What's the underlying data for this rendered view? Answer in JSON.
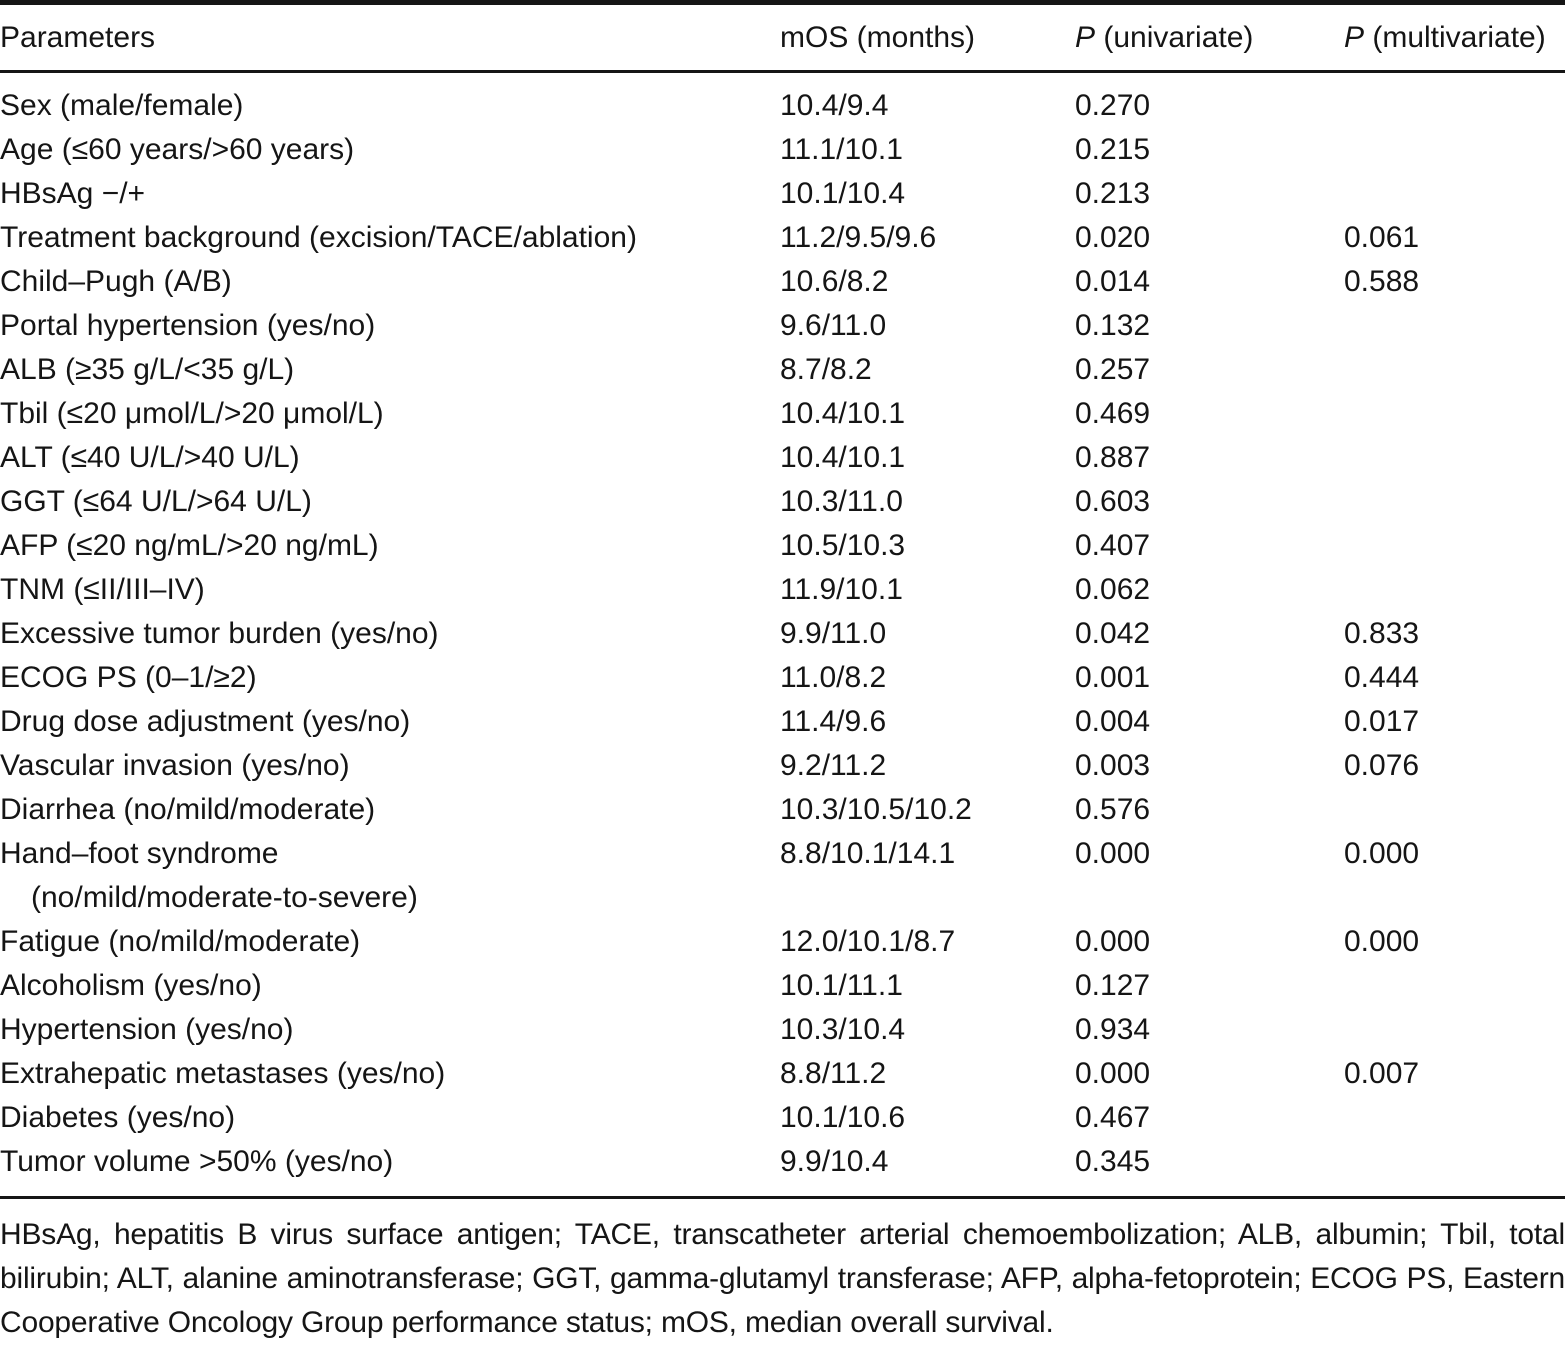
{
  "colors": {
    "background": "#ffffff",
    "text": "#151515",
    "rule": "#151515"
  },
  "table": {
    "columns": [
      {
        "label": "Parameters"
      },
      {
        "label": "mOS (months)"
      },
      {
        "italic": "P",
        "rest": " (univariate)"
      },
      {
        "italic": "P",
        "rest": " (multivariate)"
      }
    ],
    "rows": [
      {
        "parameter": "Sex (male/female)",
        "mos": "10.4/9.4",
        "p_univariate": "0.270",
        "p_multivariate": ""
      },
      {
        "parameter": "Age (≤60 years/>60 years)",
        "mos": "11.1/10.1",
        "p_univariate": "0.215",
        "p_multivariate": ""
      },
      {
        "parameter": "HBsAg −/+",
        "mos": "10.1/10.4",
        "p_univariate": "0.213",
        "p_multivariate": ""
      },
      {
        "parameter": "Treatment background (excision/TACE/ablation)",
        "mos": "11.2/9.5/9.6",
        "p_univariate": "0.020",
        "p_multivariate": "0.061"
      },
      {
        "parameter": "Child–Pugh (A/B)",
        "mos": "10.6/8.2",
        "p_univariate": "0.014",
        "p_multivariate": "0.588"
      },
      {
        "parameter": "Portal hypertension (yes/no)",
        "mos": "9.6/11.0",
        "p_univariate": "0.132",
        "p_multivariate": ""
      },
      {
        "parameter": "ALB (≥35 g/L/<35 g/L)",
        "mos": "8.7/8.2",
        "p_univariate": "0.257",
        "p_multivariate": ""
      },
      {
        "parameter": "Tbil (≤20 μmol/L/>20 μmol/L)",
        "mos": "10.4/10.1",
        "p_univariate": "0.469",
        "p_multivariate": ""
      },
      {
        "parameter": "ALT (≤40 U/L/>40 U/L)",
        "mos": "10.4/10.1",
        "p_univariate": "0.887",
        "p_multivariate": ""
      },
      {
        "parameter": "GGT (≤64 U/L/>64 U/L)",
        "mos": "10.3/11.0",
        "p_univariate": "0.603",
        "p_multivariate": ""
      },
      {
        "parameter": "AFP (≤20 ng/mL/>20 ng/mL)",
        "mos": "10.5/10.3",
        "p_univariate": "0.407",
        "p_multivariate": ""
      },
      {
        "parameter": "TNM (≤II/III–IV)",
        "mos": "11.9/10.1",
        "p_univariate": "0.062",
        "p_multivariate": ""
      },
      {
        "parameter": "Excessive tumor burden (yes/no)",
        "mos": "9.9/11.0",
        "p_univariate": "0.042",
        "p_multivariate": "0.833"
      },
      {
        "parameter": "ECOG PS (0–1/≥2)",
        "mos": "11.0/8.2",
        "p_univariate": "0.001",
        "p_multivariate": "0.444"
      },
      {
        "parameter": "Drug dose adjustment (yes/no)",
        "mos": "11.4/9.6",
        "p_univariate": "0.004",
        "p_multivariate": "0.017"
      },
      {
        "parameter": "Vascular invasion (yes/no)",
        "mos": "9.2/11.2",
        "p_univariate": "0.003",
        "p_multivariate": "0.076"
      },
      {
        "parameter": "Diarrhea (no/mild/moderate)",
        "mos": "10.3/10.5/10.2",
        "p_univariate": "0.576",
        "p_multivariate": ""
      },
      {
        "parameter": "Hand–foot syndrome",
        "parameter_line2": "(no/mild/moderate-to-severe)",
        "mos": "8.8/10.1/14.1",
        "p_univariate": "0.000",
        "p_multivariate": "0.000"
      },
      {
        "parameter": "Fatigue (no/mild/moderate)",
        "mos": "12.0/10.1/8.7",
        "p_univariate": "0.000",
        "p_multivariate": "0.000"
      },
      {
        "parameter": "Alcoholism (yes/no)",
        "mos": "10.1/11.1",
        "p_univariate": "0.127",
        "p_multivariate": ""
      },
      {
        "parameter": "Hypertension (yes/no)",
        "mos": "10.3/10.4",
        "p_univariate": "0.934",
        "p_multivariate": ""
      },
      {
        "parameter": "Extrahepatic metastases (yes/no)",
        "mos": "8.8/11.2",
        "p_univariate": "0.000",
        "p_multivariate": "0.007"
      },
      {
        "parameter": "Diabetes (yes/no)",
        "mos": "10.1/10.6",
        "p_univariate": "0.467",
        "p_multivariate": ""
      },
      {
        "parameter": "Tumor volume >50% (yes/no)",
        "mos": "9.9/10.4",
        "p_univariate": "0.345",
        "p_multivariate": ""
      }
    ]
  },
  "footnote": {
    "text": "HBsAg, hepatitis B virus surface antigen; TACE, transcatheter arterial chemoembolization; ALB, albumin; Tbil, total bilirubin; ALT, alanine aminotransferase; GGT, gamma-glutamyl transferase; AFP, alpha-fetoprotein; ECOG PS, Eastern Cooperative Oncology Group performance status; mOS, median overall survival."
  }
}
